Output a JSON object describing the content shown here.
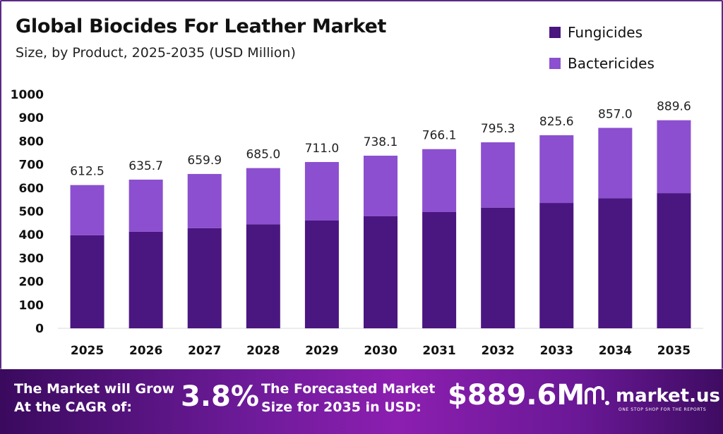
{
  "header": {
    "title": "Global Biocides For Leather Market",
    "subtitle": "Size, by Product, 2025-2035 (USD Million)"
  },
  "legend": [
    {
      "label": "Fungicides",
      "color": "#4a1680"
    },
    {
      "label": "Bactericides",
      "color": "#8b4fcf"
    }
  ],
  "chart_data": {
    "type": "bar",
    "stacked": true,
    "categories": [
      "2025",
      "2026",
      "2027",
      "2028",
      "2029",
      "2030",
      "2031",
      "2032",
      "2033",
      "2034",
      "2035"
    ],
    "series": [
      {
        "name": "Fungicides",
        "color": "#4a1680",
        "values": [
          398,
          413,
          428,
          445,
          461,
          479,
          497,
          516,
          536,
          556,
          578
        ]
      },
      {
        "name": "Bactericides",
        "color": "#8b4fcf",
        "values": [
          214.5,
          222.7,
          231.9,
          240.0,
          250.0,
          259.1,
          269.1,
          279.3,
          289.6,
          301.0,
          311.6
        ]
      }
    ],
    "totals": [
      "612.5",
      "635.7",
      "659.9",
      "685.0",
      "711.0",
      "738.1",
      "766.1",
      "795.3",
      "825.6",
      "857.0",
      "889.6"
    ],
    "y_ticks": [
      "0",
      "100",
      "200",
      "300",
      "400",
      "500",
      "600",
      "700",
      "800",
      "900",
      "1000"
    ],
    "ylim": [
      0,
      1000
    ],
    "grid": false,
    "legend_position": "top-right"
  },
  "footer": {
    "cagr_label_1": "The Market will Grow",
    "cagr_label_2": "At the CAGR of:",
    "cagr_value": "3.8%",
    "forecast_label_1": "The Forecasted Market",
    "forecast_label_2": "Size for 2035 in USD:",
    "forecast_value": "$889.6M",
    "brand": "market.us",
    "brand_tagline": "ONE STOP SHOP FOR THE REPORTS"
  }
}
